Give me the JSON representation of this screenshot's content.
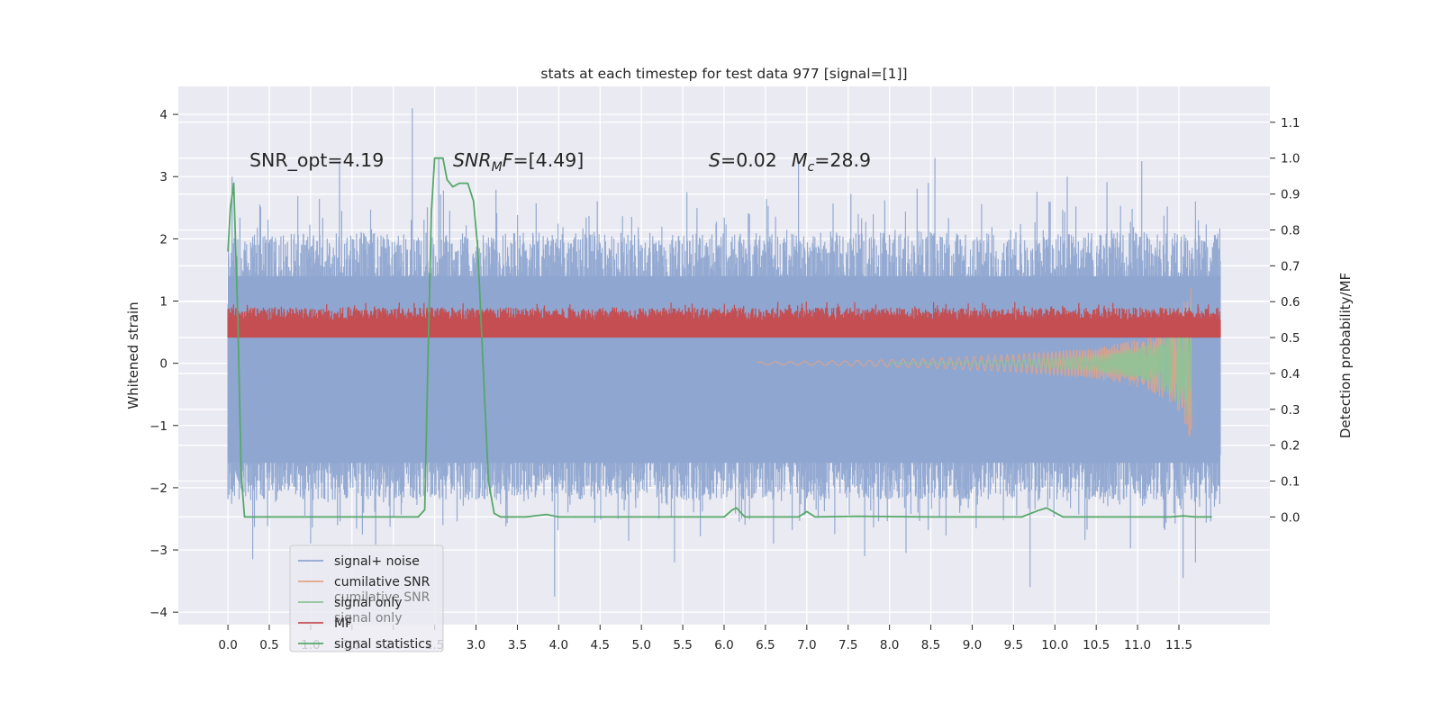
{
  "chart_data": {
    "type": "line",
    "title": "stats at each timestep for test data 977 [signal=[1]]",
    "ylabel": "Whitened strain",
    "y2label": "Detection probability/MF",
    "xlim": [
      -0.6,
      12.6
    ],
    "ylim": [
      -4.2,
      4.45
    ],
    "y2lim": [
      -0.3,
      1.2
    ],
    "xticks": [
      "0.0",
      "0.5",
      "1.0",
      "1.5",
      "2.0",
      "2.5",
      "3.0",
      "3.5",
      "4.0",
      "4.5",
      "5.0",
      "5.5",
      "6.0",
      "6.5",
      "7.0",
      "7.5",
      "8.0",
      "8.5",
      "9.0",
      "9.5",
      "10.0",
      "10.5",
      "11.0",
      "11.5"
    ],
    "yticks": [
      "4",
      "3",
      "2",
      "1",
      "0",
      "−1",
      "−2",
      "−3",
      "−4"
    ],
    "y2ticks": [
      "1.1",
      "1.0",
      "0.9",
      "0.8",
      "0.7",
      "0.6",
      "0.5",
      "0.4",
      "0.3",
      "0.2",
      "0.1",
      "0.0"
    ],
    "grid": true,
    "annotations": {
      "snr_opt": "SNR_opt=4.19",
      "snr_mf_base": "SNR",
      "snr_mf_sub": "M",
      "snr_mf_rest": "F=[4.49]",
      "s_letter": "S",
      "s_value": "=0.02",
      "mc_letter": "M",
      "mc_sub": "c",
      "mc_value": "=28.9"
    },
    "legend": {
      "placement": "lower-left",
      "entries": [
        {
          "label": "signal+ noise",
          "color": "#8fa6d0"
        },
        {
          "label": "cumilative SNR",
          "color": "#e2a486"
        },
        {
          "label": "signal only",
          "color": "#8ec396"
        },
        {
          "label": "MF",
          "color": "#c44e52"
        },
        {
          "label": "signal statistics",
          "color": "#55a868"
        }
      ],
      "ghost_labels": [
        "cumilative SNR",
        "signal only"
      ]
    },
    "series": [
      {
        "name": "signal+ noise",
        "axis": "left",
        "style": "dense-noise-band",
        "color": "#8fa6d0",
        "x_range": [
          0.0,
          12.0
        ],
        "band_low": -1.6,
        "band_high": 1.4,
        "peaks_high": [
          [
            0.05,
            3.0
          ],
          [
            1.35,
            3.25
          ],
          [
            2.23,
            4.1
          ],
          [
            2.55,
            3.3
          ],
          [
            5.55,
            2.75
          ],
          [
            6.9,
            3.25
          ],
          [
            8.55,
            3.3
          ],
          [
            10.15,
            3.0
          ],
          [
            11.05,
            3.25
          ],
          [
            11.7,
            2.6
          ]
        ],
        "peaks_low": [
          [
            0.3,
            -3.15
          ],
          [
            1.0,
            -2.9
          ],
          [
            2.6,
            -2.6
          ],
          [
            3.95,
            -3.75
          ],
          [
            5.4,
            -3.2
          ],
          [
            7.7,
            -3.1
          ],
          [
            8.2,
            -3.05
          ],
          [
            9.7,
            -3.6
          ],
          [
            11.55,
            -3.45
          ],
          [
            11.7,
            -3.2
          ]
        ]
      },
      {
        "name": "cumilative SNR",
        "axis": "left",
        "style": "chirp",
        "color": "#e2a486",
        "x": [
          6.4,
          7.5,
          8.5,
          9.5,
          10.5,
          11.0,
          11.3,
          11.5,
          11.58,
          11.65
        ],
        "amplitude": [
          0.02,
          0.04,
          0.08,
          0.14,
          0.25,
          0.38,
          0.55,
          0.78,
          1.05,
          1.25
        ]
      },
      {
        "name": "signal only",
        "axis": "left",
        "style": "chirp",
        "color": "#8ec396",
        "x": [
          8.0,
          9.5,
          10.5,
          11.0,
          11.4,
          11.6,
          11.65
        ],
        "amplitude": [
          0.01,
          0.05,
          0.12,
          0.25,
          0.5,
          0.85,
          0.95
        ]
      },
      {
        "name": "MF",
        "axis": "right",
        "style": "dense-noise",
        "color": "#c44e52",
        "x_range": [
          0.0,
          12.0
        ],
        "baseline": 0.5,
        "mean": 0.56,
        "max": 0.6
      },
      {
        "name": "signal statistics",
        "axis": "right",
        "style": "line",
        "color": "#55a868",
        "x": [
          0.0,
          0.03,
          0.07,
          0.12,
          0.16,
          0.2,
          0.3,
          0.5,
          1.0,
          1.5,
          2.0,
          2.3,
          2.38,
          2.42,
          2.46,
          2.5,
          2.55,
          2.6,
          2.65,
          2.72,
          2.8,
          2.9,
          2.97,
          3.02,
          3.08,
          3.15,
          3.22,
          3.3,
          3.6,
          3.85,
          4.0,
          4.3,
          5.0,
          6.0,
          6.1,
          6.15,
          6.25,
          6.9,
          7.0,
          7.1,
          7.6,
          8.5,
          9.6,
          9.8,
          9.9,
          10.0,
          10.1,
          11.4,
          11.55,
          11.7,
          11.9
        ],
        "y": [
          0.74,
          0.86,
          0.93,
          0.55,
          0.12,
          0.0,
          0.0,
          0.0,
          0.0,
          0.0,
          0.0,
          0.0,
          0.02,
          0.45,
          0.85,
          1.0,
          1.0,
          1.0,
          0.94,
          0.92,
          0.93,
          0.93,
          0.88,
          0.75,
          0.45,
          0.1,
          0.01,
          0.0,
          0.0,
          0.007,
          0.0,
          0.0,
          0.0,
          0.0,
          0.02,
          0.025,
          0.0,
          0.0,
          0.015,
          0.0,
          0.002,
          0.0,
          0.0,
          0.018,
          0.025,
          0.012,
          0.0,
          0.0,
          0.003,
          0.0,
          0.0
        ]
      }
    ]
  }
}
